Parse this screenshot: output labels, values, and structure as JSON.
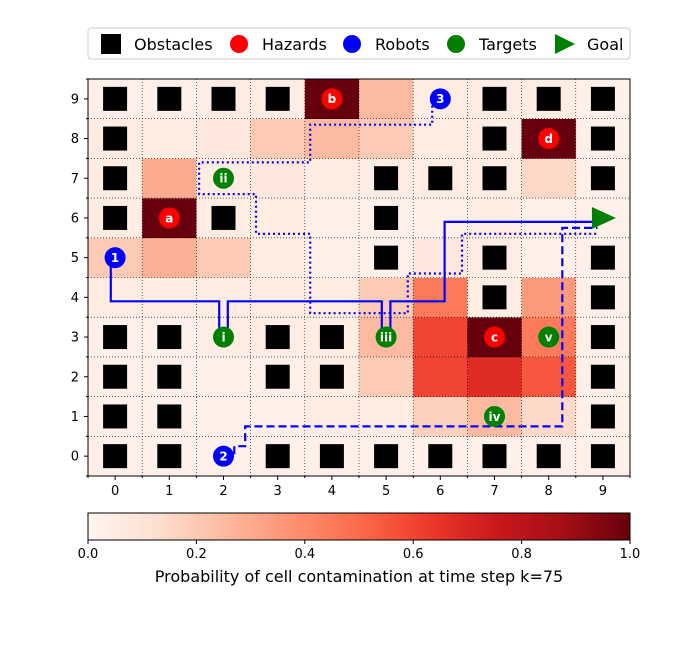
{
  "chart_data": {
    "type": "heatmap",
    "x": [
      0,
      1,
      2,
      3,
      4,
      5,
      6,
      7,
      8,
      9
    ],
    "y": [
      0,
      1,
      2,
      3,
      4,
      5,
      6,
      7,
      8,
      9
    ],
    "xlim": [
      -0.5,
      9.5
    ],
    "ylim": [
      -0.5,
      9.5
    ],
    "grid": true,
    "legend_position": "top",
    "colorbar": {
      "range": [
        0.0,
        1.0
      ],
      "ticks": [
        "0.0",
        "0.2",
        "0.4",
        "0.6",
        "0.8",
        "1.0"
      ],
      "label": "Probability of cell contamination at time step k=75"
    },
    "heatmap_values": [
      [
        0.03,
        0.03,
        0.03,
        0.03,
        0.03,
        0.03,
        0.03,
        0.03,
        0.03,
        0.03
      ],
      [
        0.03,
        0.03,
        0.03,
        0.03,
        0.05,
        0.05,
        0.18,
        0.25,
        0.15,
        0.03
      ],
      [
        0.03,
        0.03,
        0.03,
        0.03,
        0.05,
        0.2,
        0.6,
        0.68,
        0.55,
        0.03
      ],
      [
        0.03,
        0.03,
        0.05,
        0.05,
        0.05,
        0.25,
        0.6,
        1.0,
        0.45,
        0.03
      ],
      [
        0.05,
        0.05,
        0.05,
        0.05,
        0.05,
        0.2,
        0.45,
        0.05,
        0.35,
        0.03
      ],
      [
        0.2,
        0.28,
        0.2,
        0.05,
        0.03,
        0.03,
        0.08,
        0.05,
        0.03,
        0.03
      ],
      [
        0.05,
        1.0,
        0.05,
        0.05,
        0.03,
        0.03,
        0.03,
        0.05,
        0.03,
        0.03
      ],
      [
        0.05,
        0.3,
        0.05,
        0.08,
        0.05,
        0.05,
        0.05,
        0.05,
        0.15,
        0.03
      ],
      [
        0.05,
        0.05,
        0.08,
        0.2,
        0.25,
        0.2,
        0.05,
        0.05,
        1.0,
        0.03
      ],
      [
        0.03,
        0.03,
        0.05,
        0.05,
        1.0,
        0.25,
        0.05,
        0.05,
        0.05,
        0.03
      ]
    ],
    "legend": [
      {
        "label": "Obstacles",
        "marker": "square",
        "color": "#000000"
      },
      {
        "label": "Hazards",
        "marker": "circle",
        "color": "#ff0000"
      },
      {
        "label": "Robots",
        "marker": "circle",
        "color": "#0000ff"
      },
      {
        "label": "Targets",
        "marker": "circle",
        "color": "#008000"
      },
      {
        "label": "Goal",
        "marker": "triangle-right",
        "color": "#008000"
      }
    ],
    "obstacles": [
      [
        0,
        0
      ],
      [
        1,
        0
      ],
      [
        3,
        0
      ],
      [
        4,
        0
      ],
      [
        5,
        0
      ],
      [
        6,
        0
      ],
      [
        7,
        0
      ],
      [
        8,
        0
      ],
      [
        9,
        0
      ],
      [
        0,
        1
      ],
      [
        1,
        1
      ],
      [
        9,
        1
      ],
      [
        0,
        2
      ],
      [
        1,
        2
      ],
      [
        3,
        2
      ],
      [
        4,
        2
      ],
      [
        9,
        2
      ],
      [
        0,
        3
      ],
      [
        1,
        3
      ],
      [
        3,
        3
      ],
      [
        4,
        3
      ],
      [
        9,
        3
      ],
      [
        7,
        4
      ],
      [
        9,
        4
      ],
      [
        5,
        5
      ],
      [
        7,
        5
      ],
      [
        9,
        5
      ],
      [
        0,
        6
      ],
      [
        2,
        6
      ],
      [
        5,
        6
      ],
      [
        0,
        7
      ],
      [
        5,
        7
      ],
      [
        6,
        7
      ],
      [
        7,
        7
      ],
      [
        9,
        7
      ],
      [
        0,
        8
      ],
      [
        7,
        8
      ],
      [
        9,
        8
      ],
      [
        0,
        9
      ],
      [
        1,
        9
      ],
      [
        2,
        9
      ],
      [
        3,
        9
      ],
      [
        7,
        9
      ],
      [
        8,
        9
      ],
      [
        9,
        9
      ]
    ],
    "hazards": [
      {
        "label": "a",
        "x": 1,
        "y": 6
      },
      {
        "label": "b",
        "x": 4,
        "y": 9
      },
      {
        "label": "c",
        "x": 7,
        "y": 3
      },
      {
        "label": "d",
        "x": 8,
        "y": 8
      }
    ],
    "robots": [
      {
        "label": "1",
        "x": 0,
        "y": 5
      },
      {
        "label": "2",
        "x": 2,
        "y": 0
      },
      {
        "label": "3",
        "x": 6,
        "y": 9
      }
    ],
    "targets": [
      {
        "label": "i",
        "x": 2,
        "y": 3
      },
      {
        "label": "ii",
        "x": 2,
        "y": 7
      },
      {
        "label": "iii",
        "x": 5,
        "y": 3
      },
      {
        "label": "iv",
        "x": 7,
        "y": 1
      },
      {
        "label": "v",
        "x": 8,
        "y": 3
      }
    ],
    "goal": {
      "x": 9,
      "y": 6
    },
    "paths": [
      {
        "robot": "1",
        "style": "solid",
        "color": "#0000ff",
        "points": [
          [
            -0.08,
            4.85
          ],
          [
            -0.08,
            3.9
          ],
          [
            1.92,
            3.9
          ],
          [
            1.92,
            3.0
          ],
          [
            2.08,
            3.0
          ],
          [
            2.08,
            3.9
          ],
          [
            4.92,
            3.9
          ],
          [
            4.92,
            3.0
          ],
          [
            5.08,
            3.0
          ],
          [
            5.08,
            3.9
          ],
          [
            6.08,
            3.9
          ],
          [
            6.08,
            5.9
          ],
          [
            8.9,
            5.9
          ]
        ]
      },
      {
        "robot": "2",
        "style": "dashed",
        "color": "#0000ff",
        "points": [
          [
            2.2,
            0.05
          ],
          [
            2.2,
            0.25
          ],
          [
            2.4,
            0.25
          ],
          [
            2.4,
            0.75
          ],
          [
            8.25,
            0.75
          ],
          [
            8.25,
            5.75
          ],
          [
            8.9,
            5.75
          ]
        ]
      },
      {
        "robot": "3",
        "style": "dotted",
        "color": "#0000ff",
        "points": [
          [
            5.85,
            8.95
          ],
          [
            5.85,
            8.35
          ],
          [
            3.6,
            8.35
          ],
          [
            3.6,
            7.4
          ],
          [
            1.55,
            7.4
          ],
          [
            1.55,
            6.6
          ],
          [
            2.6,
            6.6
          ],
          [
            2.6,
            5.6
          ],
          [
            3.6,
            5.6
          ],
          [
            3.6,
            3.6
          ],
          [
            5.4,
            3.6
          ],
          [
            5.4,
            4.6
          ],
          [
            6.4,
            4.6
          ],
          [
            6.4,
            5.6
          ],
          [
            8.9,
            5.6
          ]
        ]
      }
    ]
  }
}
